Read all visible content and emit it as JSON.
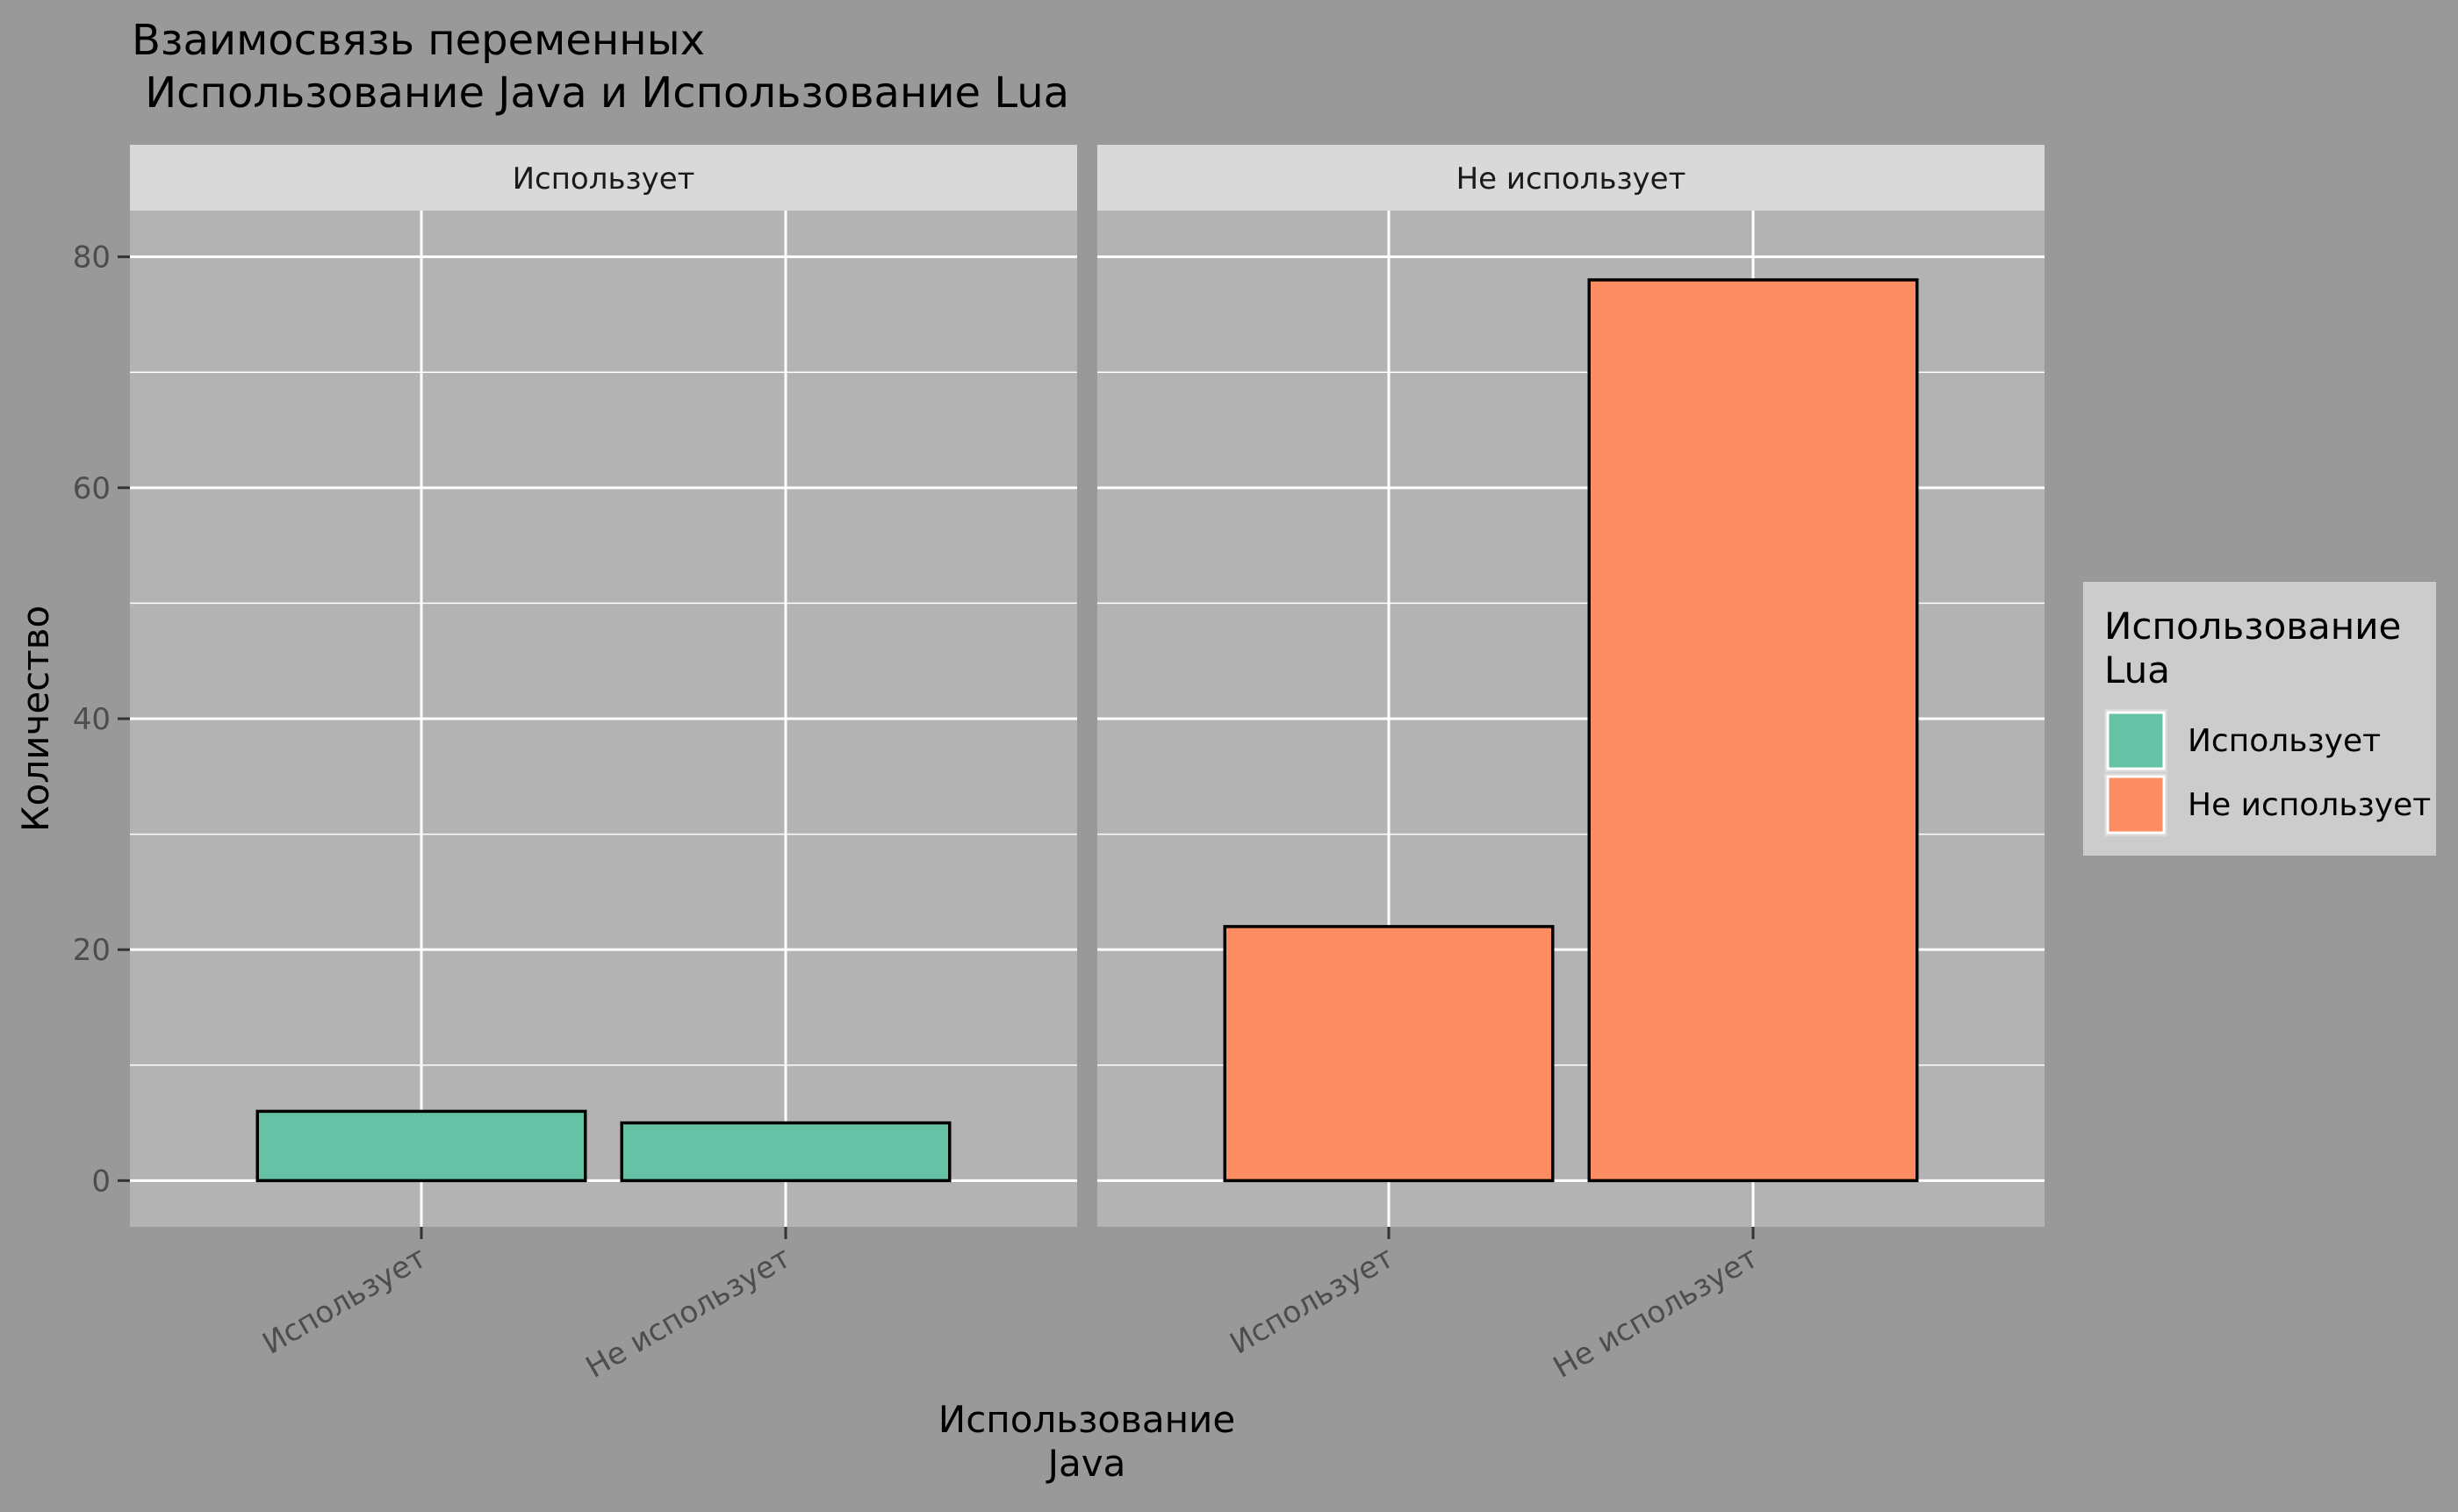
{
  "colors": {
    "background": "#999999",
    "panel": "#b3b3b3",
    "strip": "#d9d9d9",
    "grid": "#ffffff",
    "legend_bg": "#cccccc",
    "bar_outline": "#000000",
    "text": "#000000",
    "tick_text": "#4d4d4d"
  },
  "chart_data": {
    "type": "bar",
    "title": "Взаимосвязь переменных\n Использование Java и Использование Lua",
    "xlabel": "Использование\nJava",
    "ylabel": "Количество",
    "ylim": [
      -4,
      84
    ],
    "yticks": [
      0,
      20,
      40,
      60,
      80
    ],
    "grid": true,
    "categories": [
      "Использует",
      "Не использует"
    ],
    "facets": [
      {
        "label": "Использует",
        "bars": [
          {
            "category": "Использует",
            "value": 6,
            "fill": "Использует"
          },
          {
            "category": "Не использует",
            "value": 5,
            "fill": "Использует"
          }
        ]
      },
      {
        "label": "Не использует",
        "bars": [
          {
            "category": "Использует",
            "value": 22,
            "fill": "Не использует"
          },
          {
            "category": "Не использует",
            "value": 78,
            "fill": "Не использует"
          }
        ]
      }
    ],
    "legend": {
      "title": "Использование\nLua",
      "placement": "right",
      "entries": [
        {
          "label": "Использует",
          "color": "#66c2a5"
        },
        {
          "label": "Не использует",
          "color": "#fc8d62"
        }
      ]
    }
  }
}
